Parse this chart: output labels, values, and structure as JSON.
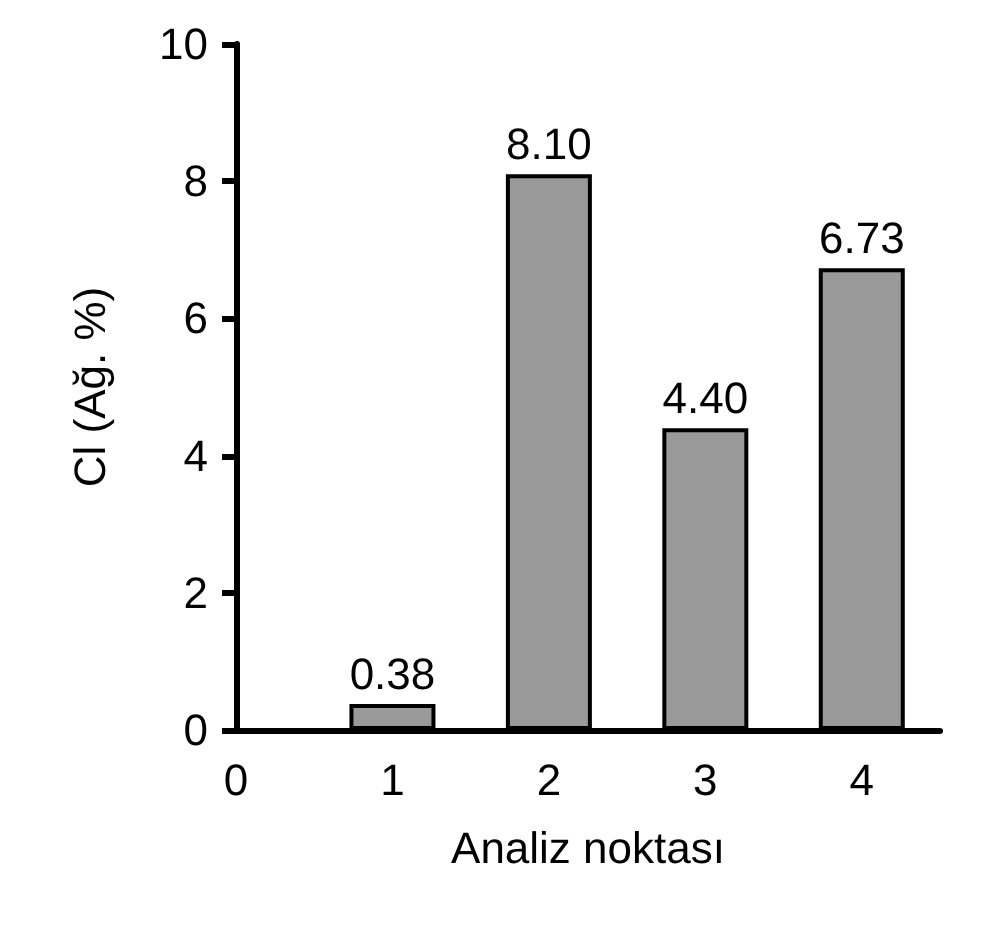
{
  "chart_data": {
    "type": "bar",
    "xlabel": "Analiz noktası",
    "ylabel": "Cl (Ağ. %)",
    "x": [
      1,
      2,
      3,
      4
    ],
    "values": [
      0.38,
      8.1,
      4.4,
      6.73
    ],
    "value_labels": [
      "0.38",
      "8.10",
      "4.40",
      "6.73"
    ],
    "color": "#999999",
    "xlim": [
      0,
      4.5
    ],
    "xticks": [
      0,
      1,
      2,
      3,
      4
    ],
    "ylim": [
      0,
      10
    ],
    "yticks": [
      0,
      2,
      4,
      6,
      8,
      10
    ],
    "grid": false
  }
}
